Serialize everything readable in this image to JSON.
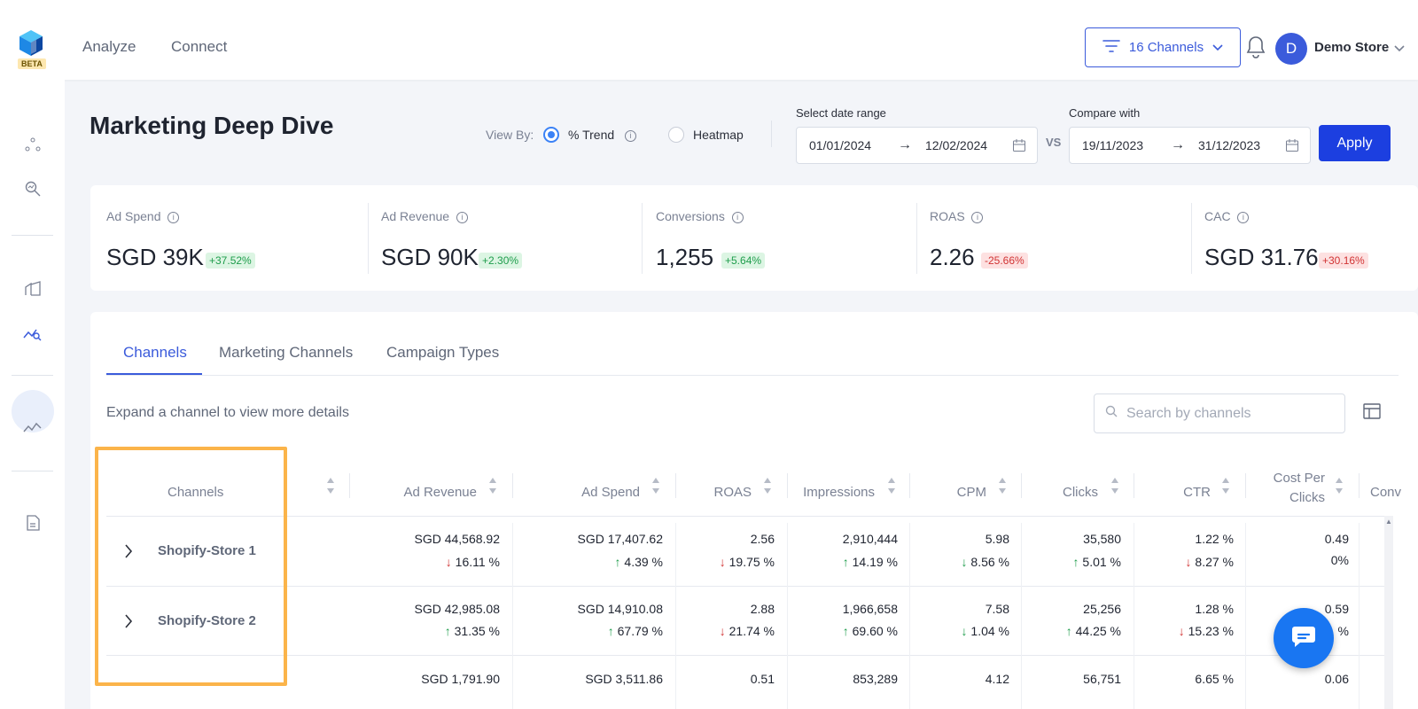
{
  "topbar": {
    "beta_label": "BETA",
    "nav": [
      "Analyze",
      "Connect"
    ],
    "channels_filter_label": "16 Channels",
    "avatar_initial": "D",
    "store_name": "Demo Store"
  },
  "page": {
    "title": "Marketing Deep Dive",
    "view_by_label": "View By:",
    "view_options": [
      {
        "label": "% Trend",
        "selected": true
      },
      {
        "label": "Heatmap",
        "selected": false
      }
    ],
    "date_range_label": "Select date range",
    "date_from": "01/01/2024",
    "date_to": "12/02/2024",
    "vs_label": "VS",
    "compare_label": "Compare with",
    "compare_from": "19/11/2023",
    "compare_to": "31/12/2023",
    "apply_label": "Apply",
    "arrow": "→"
  },
  "kpis": [
    {
      "label": "Ad Spend",
      "value": "SGD 39K",
      "change": "+37.52%",
      "trend": "up"
    },
    {
      "label": "Ad Revenue",
      "value": "SGD 90K",
      "change": "+2.30%",
      "trend": "up"
    },
    {
      "label": "Conversions",
      "value": "1,255",
      "change": "+5.64%",
      "trend": "up"
    },
    {
      "label": "ROAS",
      "value": "2.26",
      "change": "-25.66%",
      "trend": "down"
    },
    {
      "label": "CAC",
      "value": "SGD 31.76",
      "change": "+30.16%",
      "trend": "down"
    }
  ],
  "tabs": [
    "Channels",
    "Marketing Channels",
    "Campaign Types"
  ],
  "expand_hint": "Expand a channel to view more details",
  "search_placeholder": "Search by channels",
  "table": {
    "columns": [
      "Channels",
      "Ad Revenue",
      "Ad Spend",
      "ROAS",
      "Impressions",
      "CPM",
      "Clicks",
      "CTR",
      "Cost Per",
      "Clicks",
      "Conv"
    ],
    "rows": [
      {
        "name": "Shopify-Store 1",
        "cells": [
          {
            "value": "SGD 44,568.92",
            "change": "16.11 %",
            "dir": "down"
          },
          {
            "value": "SGD 17,407.62",
            "change": "4.39 %",
            "dir": "up"
          },
          {
            "value": "2.56",
            "change": "19.75 %",
            "dir": "down"
          },
          {
            "value": "2,910,444",
            "change": "14.19 %",
            "dir": "up"
          },
          {
            "value": "5.98",
            "change": "8.56 %",
            "dir": "down"
          },
          {
            "value": "35,580",
            "change": "5.01 %",
            "dir": "up"
          },
          {
            "value": "1.22 %",
            "change": "8.27 %",
            "dir": "down"
          },
          {
            "value": "0.49",
            "change": "0%",
            "dir": "none"
          }
        ]
      },
      {
        "name": "Shopify-Store 2",
        "cells": [
          {
            "value": "SGD 42,985.08",
            "change": "31.35 %",
            "dir": "up"
          },
          {
            "value": "SGD 14,910.08",
            "change": "67.79 %",
            "dir": "up"
          },
          {
            "value": "2.88",
            "change": "21.74 %",
            "dir": "down"
          },
          {
            "value": "1,966,658",
            "change": "69.60 %",
            "dir": "up"
          },
          {
            "value": "7.58",
            "change": "1.04 %",
            "dir": "down"
          },
          {
            "value": "25,256",
            "change": "44.25 %",
            "dir": "up"
          },
          {
            "value": "1.28 %",
            "change": "15.23 %",
            "dir": "down"
          },
          {
            "value": "0.59",
            "change": "%",
            "dir": "none"
          }
        ]
      },
      {
        "name": "",
        "cells": [
          {
            "value": "SGD 1,791.90"
          },
          {
            "value": "SGD 3,511.86"
          },
          {
            "value": "0.51"
          },
          {
            "value": "853,289"
          },
          {
            "value": "4.12"
          },
          {
            "value": "56,751"
          },
          {
            "value": "6.65 %"
          },
          {
            "value": "0.06"
          }
        ]
      }
    ]
  },
  "colors": {
    "accent": "#3b5bdb",
    "apply": "#1c3fe0",
    "up": "#1f9d4c",
    "down": "#d13434",
    "highlight": "#fbb44a",
    "chat": "#1976f2"
  },
  "icons": [
    "filter-icon",
    "chevron-down-icon",
    "bell-icon",
    "info-icon",
    "calendar-icon",
    "search-icon",
    "columns-icon",
    "chevron-right-icon",
    "sort-icon",
    "chat-icon"
  ]
}
